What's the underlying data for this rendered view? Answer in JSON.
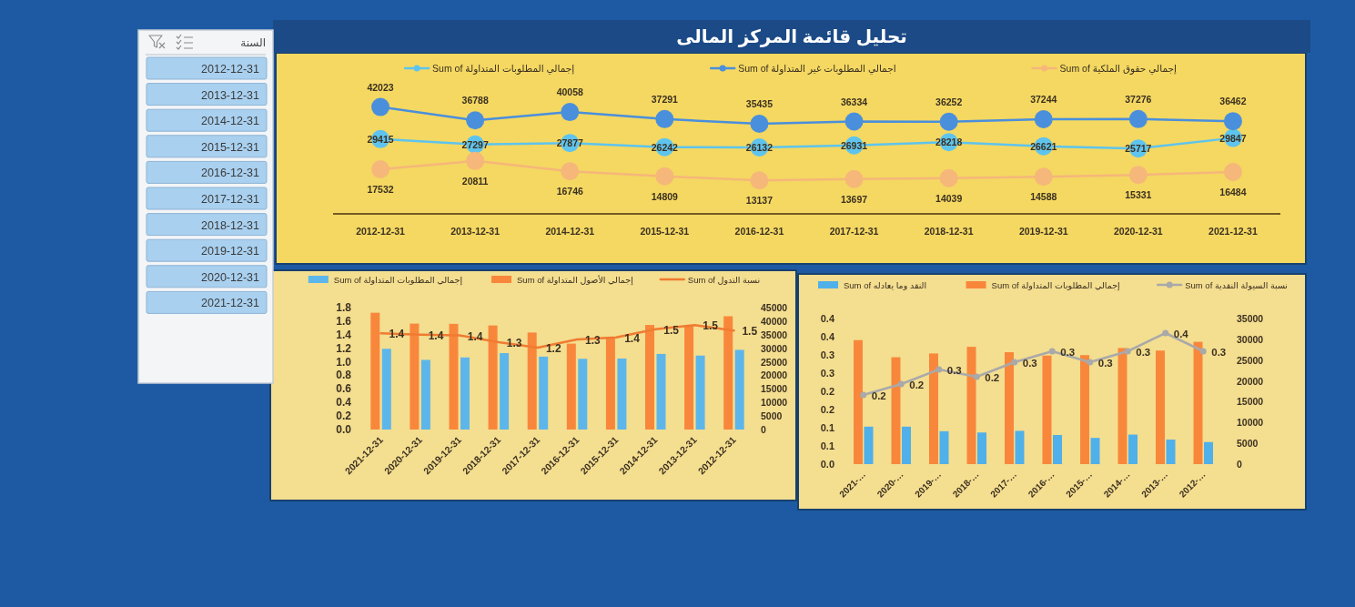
{
  "chart_data": [
    {
      "type": "line",
      "title": "تحليل قائمة المركز المالى",
      "categories": [
        "2012-12-31",
        "2013-12-31",
        "2014-12-31",
        "2015-12-31",
        "2016-12-31",
        "2017-12-31",
        "2018-12-31",
        "2019-12-31",
        "2020-12-31",
        "2021-12-31"
      ],
      "series": [
        {
          "name": "Sum of إجمالي المطلوبات المتداولة",
          "color": "#5ec4ee",
          "values": [
            29415,
            27297,
            27877,
            26242,
            26132,
            26931,
            28218,
            26621,
            25717,
            29847
          ]
        },
        {
          "name": "Sum of اجمالي المطلوبات غير المتداولة",
          "color": "#4a8fdc",
          "values": [
            42023,
            36788,
            40058,
            37291,
            35435,
            36334,
            36252,
            37244,
            37276,
            36462
          ]
        },
        {
          "name": "Sum of إجمالي حقوق الملكية",
          "color": "#f6b77a",
          "values": [
            17532,
            20811,
            16746,
            14809,
            13137,
            13697,
            14039,
            14588,
            15331,
            16484
          ]
        }
      ],
      "data_labels": true,
      "legend": "top",
      "marker": "circle"
    },
    {
      "type": "bar",
      "categories": [
        "2021-12-31",
        "2020-12-31",
        "2019-12-31",
        "2018-12-31",
        "2017-12-31",
        "2016-12-31",
        "2015-12-31",
        "2014-12-31",
        "2013-12-31",
        "2012-12-31"
      ],
      "series": [
        {
          "name": "Sum of إجمالي المطلوبات المتداولة",
          "color": "#5db6ea",
          "axis": "y2",
          "values": [
            29800,
            25700,
            26600,
            28200,
            26900,
            26100,
            26200,
            27900,
            27300,
            29400
          ]
        },
        {
          "name": "Sum of إجمالي الأصول المتداولة",
          "color": "#f8873c",
          "axis": "y2",
          "values": [
            43100,
            39100,
            39000,
            38400,
            35800,
            31700,
            33800,
            38600,
            38200,
            41800
          ]
        },
        {
          "name": "Sum of نسبة التدول",
          "type": "line",
          "color": "#f07b32",
          "values": [
            1.42,
            1.4,
            1.39,
            1.29,
            1.21,
            1.33,
            1.36,
            1.48,
            1.54,
            1.46
          ],
          "value_labels": [
            "1.4",
            "1.4",
            "1.4",
            "1.3",
            "1.2",
            "1.3",
            "1.4",
            "1.5",
            "1.5",
            "1.5"
          ]
        }
      ],
      "ylim": [
        0,
        1.8
      ],
      "yticks": [
        {
          "value": 0,
          "label": "0.0"
        },
        0.2,
        0.4,
        0.6,
        0.8,
        {
          "value": 1,
          "label": "1.0"
        },
        1.2,
        1.4,
        1.6,
        1.8
      ],
      "y2lim": [
        0,
        45000
      ],
      "y2ticks": [
        0,
        5000,
        10000,
        15000,
        20000,
        25000,
        30000,
        35000,
        40000,
        45000
      ],
      "legend": "top"
    },
    {
      "type": "bar",
      "categories": [
        "2021-…",
        "2020-…",
        "2019-…",
        "2018-…",
        "2017-…",
        "2016-…",
        "2015-…",
        "2014-…",
        "2013-…",
        "2012-…"
      ],
      "series": [
        {
          "name": "Sum of النقد وما يعادله",
          "color": "#4fb0ea",
          "axis": "y2",
          "values": [
            9000,
            9000,
            7900,
            7600,
            8000,
            7000,
            6300,
            7100,
            5900,
            5300
          ]
        },
        {
          "name": "Sum of إجمالي المطلوبات المتداولة",
          "color": "#f8873c",
          "axis": "y2",
          "values": [
            29800,
            25700,
            26600,
            28200,
            26900,
            26100,
            26200,
            27900,
            27300,
            29400
          ]
        },
        {
          "name": "Sum of نسبة السيولة النقدية",
          "type": "line",
          "color": "#a9a9a9",
          "values": [
            0.19,
            0.22,
            0.26,
            0.24,
            0.28,
            0.31,
            0.28,
            0.31,
            0.36,
            0.31
          ],
          "value_labels": [
            "0.2",
            "0.2",
            "0.3",
            "0.2",
            "0.3",
            "0.3",
            "0.3",
            "0.3",
            "0.4",
            "0.3"
          ]
        }
      ],
      "ylim": [
        0,
        0.4
      ],
      "yticks": [
        {
          "value": 0,
          "label": "0.0"
        },
        {
          "value": 0.05,
          "label": "0.1"
        },
        0.1,
        {
          "value": 0.15,
          "label": "0.2"
        },
        0.2,
        {
          "value": 0.25,
          "label": "0.3"
        },
        0.3,
        {
          "value": 0.35,
          "label": "0.4"
        },
        0.4
      ],
      "y2lim": [
        0,
        35000
      ],
      "y2ticks": [
        0,
        5000,
        10000,
        15000,
        20000,
        25000,
        30000,
        35000
      ],
      "legend": "top",
      "marker": "circle"
    },
    {
      "type": "other",
      "title": "السنة",
      "annotations": [
        "2012-12-31",
        "2013-12-31",
        "2014-12-31",
        "2015-12-31",
        "2016-12-31",
        "2017-12-31",
        "2018-12-31",
        "2019-12-31",
        "2020-12-31",
        "2021-12-31"
      ]
    }
  ]
}
